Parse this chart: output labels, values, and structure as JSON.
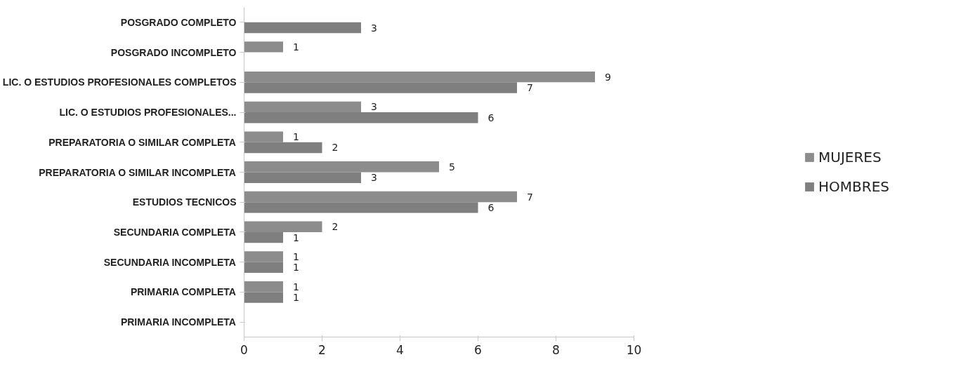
{
  "chart_data": {
    "type": "bar",
    "orientation": "horizontal",
    "categories": [
      "POSGRADO COMPLETO",
      "POSGRADO INCOMPLETO",
      "LIC. O ESTUDIOS PROFESIONALES COMPLETOS",
      "LIC. O ESTUDIOS PROFESIONALES...",
      "PREPARATORIA O SIMILAR COMPLETA",
      "PREPARATORIA O SIMILAR INCOMPLETA",
      "ESTUDIOS TECNICOS",
      "SECUNDARIA COMPLETA",
      "SECUNDARIA INCOMPLETA",
      "PRIMARIA COMPLETA",
      "PRIMARIA INCOMPLETA"
    ],
    "series": [
      {
        "name": "MUJERES",
        "color": "#8c8c8c",
        "values": [
          null,
          1,
          9,
          3,
          1,
          5,
          7,
          2,
          1,
          1,
          null
        ]
      },
      {
        "name": "HOMBRES",
        "color": "#7f7f7f",
        "values": [
          3,
          null,
          7,
          6,
          2,
          3,
          6,
          1,
          1,
          1,
          null
        ]
      }
    ],
    "xlim": [
      0,
      10
    ],
    "xticks": [
      0,
      2,
      4,
      6,
      8,
      10
    ],
    "grid": false,
    "legend": "right",
    "data_labels": true
  }
}
